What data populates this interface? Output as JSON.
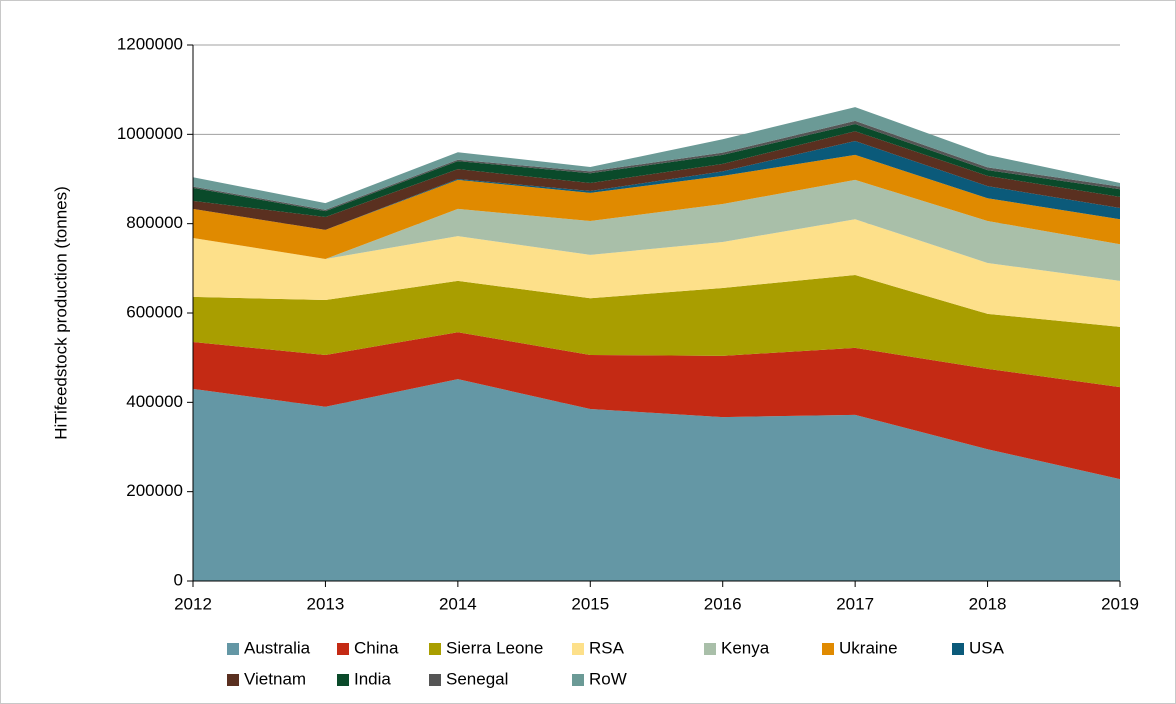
{
  "chart_data": {
    "type": "stacked_area",
    "y_label": "HiTifeedstock production (tonnes)",
    "categories": [
      "2012",
      "2013",
      "2014",
      "2015",
      "2016",
      "2017",
      "2018",
      "2019"
    ],
    "ylim": [
      0,
      1200000
    ],
    "yticks": [
      0,
      200000,
      400000,
      600000,
      800000,
      1000000,
      1200000
    ],
    "grid": true,
    "legend": "bottom",
    "series": [
      {
        "name": "Australia",
        "color": "#6497a5",
        "values": [
          430000,
          390000,
          452000,
          385000,
          367000,
          372000,
          295000,
          228000
        ]
      },
      {
        "name": "China",
        "color": "#c42a14",
        "values": [
          105000,
          116000,
          105000,
          121000,
          137000,
          150000,
          180000,
          206000
        ]
      },
      {
        "name": "Sierra Leone",
        "color": "#a99e00",
        "values": [
          101000,
          123000,
          115000,
          127000,
          152000,
          163000,
          123000,
          135000
        ]
      },
      {
        "name": "RSA",
        "color": "#fde08a",
        "values": [
          132000,
          92000,
          100000,
          97000,
          103000,
          125000,
          114000,
          103000
        ]
      },
      {
        "name": "Kenya",
        "color": "#a9bfa9",
        "values": [
          0,
          0,
          61000,
          76000,
          85000,
          88000,
          94000,
          82000
        ]
      },
      {
        "name": "Ukraine",
        "color": "#e08a00",
        "values": [
          65000,
          65000,
          65000,
          63000,
          63000,
          56000,
          51000,
          56000
        ]
      },
      {
        "name": "USA",
        "color": "#0b5a7a",
        "values": [
          0,
          0,
          2000,
          4000,
          10000,
          31000,
          27000,
          25000
        ]
      },
      {
        "name": "Vietnam",
        "color": "#5a3020",
        "values": [
          18000,
          29000,
          22000,
          18000,
          17000,
          22000,
          23000,
          25000
        ]
      },
      {
        "name": "India",
        "color": "#0a4a2a",
        "values": [
          29000,
          13000,
          18000,
          22000,
          20000,
          16000,
          13000,
          17000
        ]
      },
      {
        "name": "Senegal",
        "color": "#555555",
        "values": [
          3000,
          3000,
          3000,
          4000,
          5000,
          7000,
          6000,
          6000
        ]
      },
      {
        "name": "RoW",
        "color": "#6b9a96",
        "values": [
          21000,
          15000,
          17000,
          10000,
          30000,
          31000,
          28000,
          8000
        ]
      }
    ]
  }
}
